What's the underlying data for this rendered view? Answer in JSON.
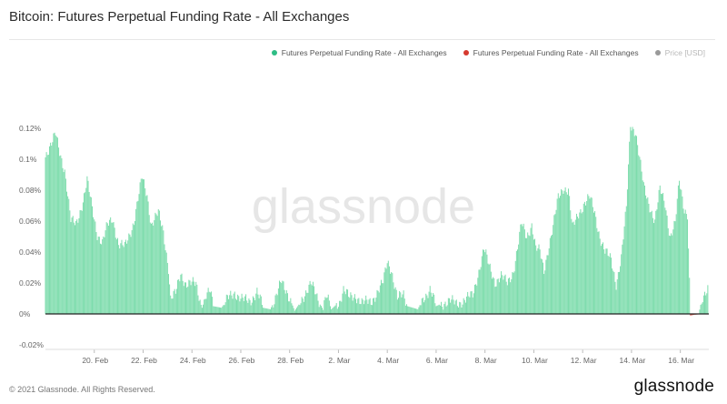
{
  "title": "Bitcoin: Futures Perpetual Funding Rate - All Exchanges",
  "watermark": "glassnode",
  "footer": {
    "copyright": "© 2021 Glassnode. All Rights Reserved.",
    "brand": "glassnode"
  },
  "legend": [
    {
      "label": "Futures Perpetual Funding Rate - All Exchanges",
      "color": "#2ebd85"
    },
    {
      "label": "Futures Perpetual Funding Rate - All Exchanges",
      "color": "#d63a2f"
    },
    {
      "label": "Price [USD]",
      "color": "#9a9a9a"
    }
  ],
  "colors": {
    "positive": "#7ddcac",
    "positive_stroke": "#43c28a",
    "negative": "#d63a2f",
    "zero_line": "#222222"
  },
  "chart_data": {
    "type": "bar",
    "title": "Bitcoin: Futures Perpetual Funding Rate - All Exchanges",
    "x_range": [
      "2021-02-18T00:00",
      "2021-03-17T04:00"
    ],
    "ylim": [
      -0.02,
      0.125
    ],
    "y_unit": "%",
    "grid": false,
    "legend_position": "top-right",
    "y_ticks": [
      {
        "value": 0.12,
        "label": "0.12%"
      },
      {
        "value": 0.1,
        "label": "0.1%"
      },
      {
        "value": 0.08,
        "label": "0.08%"
      },
      {
        "value": 0.06,
        "label": "0.06%"
      },
      {
        "value": 0.04,
        "label": "0.04%"
      },
      {
        "value": 0.02,
        "label": "0.02%"
      },
      {
        "value": 0,
        "label": "0%"
      },
      {
        "value": -0.02,
        "label": "-0.02%"
      }
    ],
    "x_ticks": [
      {
        "date": "2021-02-20",
        "label": "20. Feb"
      },
      {
        "date": "2021-02-22",
        "label": "22. Feb"
      },
      {
        "date": "2021-02-24",
        "label": "24. Feb"
      },
      {
        "date": "2021-02-26",
        "label": "26. Feb"
      },
      {
        "date": "2021-02-28",
        "label": "28. Feb"
      },
      {
        "date": "2021-03-02",
        "label": "2. Mar"
      },
      {
        "date": "2021-03-04",
        "label": "4. Mar"
      },
      {
        "date": "2021-03-06",
        "label": "6. Mar"
      },
      {
        "date": "2021-03-08",
        "label": "8. Mar"
      },
      {
        "date": "2021-03-10",
        "label": "10. Mar"
      },
      {
        "date": "2021-03-12",
        "label": "12. Mar"
      },
      {
        "date": "2021-03-14",
        "label": "14. Mar"
      },
      {
        "date": "2021-03-16",
        "label": "16. Mar"
      }
    ],
    "series": [
      {
        "name": "Futures Perpetual Funding Rate - All Exchanges",
        "interval": "1h",
        "anchors": [
          [
            "2021-02-18T00:00",
            0.103
          ],
          [
            "2021-02-18T07:00",
            0.111
          ],
          [
            "2021-02-18T10:00",
            0.116
          ],
          [
            "2021-02-18T14:00",
            0.105
          ],
          [
            "2021-02-18T19:00",
            0.093
          ],
          [
            "2021-02-19T01:00",
            0.06
          ],
          [
            "2021-02-19T06:00",
            0.058
          ],
          [
            "2021-02-19T13:00",
            0.073
          ],
          [
            "2021-02-19T17:00",
            0.086
          ],
          [
            "2021-02-19T22:00",
            0.068
          ],
          [
            "2021-02-20T03:00",
            0.052
          ],
          [
            "2021-02-20T08:00",
            0.046
          ],
          [
            "2021-02-20T13:00",
            0.057
          ],
          [
            "2021-02-20T18:00",
            0.062
          ],
          [
            "2021-02-21T00:00",
            0.045
          ],
          [
            "2021-02-21T06:00",
            0.043
          ],
          [
            "2021-02-21T11:00",
            0.052
          ],
          [
            "2021-02-21T15:00",
            0.06
          ],
          [
            "2021-02-21T19:00",
            0.074
          ],
          [
            "2021-02-21T23:00",
            0.088
          ],
          [
            "2021-02-22T04:00",
            0.077
          ],
          [
            "2021-02-22T08:00",
            0.058
          ],
          [
            "2021-02-22T15:00",
            0.065
          ],
          [
            "2021-02-22T20:00",
            0.053
          ],
          [
            "2021-02-23T01:00",
            0.03
          ],
          [
            "2021-02-23T03:00",
            0.01
          ],
          [
            "2021-02-23T08:00",
            0.013
          ],
          [
            "2021-02-23T13:00",
            0.026
          ],
          [
            "2021-02-23T18:00",
            0.02
          ],
          [
            "2021-02-24T04:00",
            0.019
          ],
          [
            "2021-02-24T10:00",
            0.004
          ],
          [
            "2021-02-24T14:00",
            0.012
          ],
          [
            "2021-02-24T18:00",
            0.014
          ],
          [
            "2021-02-24T21:00",
            0.005
          ],
          [
            "2021-02-25T05:00",
            0.004
          ],
          [
            "2021-02-25T13:00",
            0.011
          ],
          [
            "2021-02-25T18:00",
            0.014
          ],
          [
            "2021-02-26T02:00",
            0.009
          ],
          [
            "2021-02-26T09:00",
            0.008
          ],
          [
            "2021-02-26T16:00",
            0.015
          ],
          [
            "2021-02-26T22:00",
            0.004
          ],
          [
            "2021-02-27T05:00",
            0.003
          ],
          [
            "2021-02-27T11:00",
            0.011
          ],
          [
            "2021-02-27T16:00",
            0.021
          ],
          [
            "2021-02-27T22:00",
            0.014
          ],
          [
            "2021-02-28T05:00",
            0.002
          ],
          [
            "2021-02-28T11:00",
            0.008
          ],
          [
            "2021-02-28T17:00",
            0.016
          ],
          [
            "2021-02-28T21:00",
            0.02
          ],
          [
            "2021-03-01T03:00",
            0.01
          ],
          [
            "2021-03-01T08:00",
            0.004
          ],
          [
            "2021-03-01T12:00",
            0.013
          ],
          [
            "2021-03-01T17:00",
            0.003
          ],
          [
            "2021-03-02T01:00",
            0.008
          ],
          [
            "2021-03-02T05:00",
            0.016
          ],
          [
            "2021-03-02T11:00",
            0.01
          ],
          [
            "2021-03-02T17:00",
            0.012
          ],
          [
            "2021-03-03T00:00",
            0.007
          ],
          [
            "2021-03-03T08:00",
            0.008
          ],
          [
            "2021-03-03T14:00",
            0.014
          ],
          [
            "2021-03-03T20:00",
            0.02
          ],
          [
            "2021-03-04T00:00",
            0.034
          ],
          [
            "2021-03-04T04:00",
            0.029
          ],
          [
            "2021-03-04T10:00",
            0.01
          ],
          [
            "2021-03-04T16:00",
            0.012
          ],
          [
            "2021-03-04T20:00",
            0.005
          ],
          [
            "2021-03-05T06:00",
            0.003
          ],
          [
            "2021-03-05T12:00",
            0.011
          ],
          [
            "2021-03-05T18:00",
            0.016
          ],
          [
            "2021-03-06T00:00",
            0.005
          ],
          [
            "2021-03-06T06:00",
            0.007
          ],
          [
            "2021-03-06T14:00",
            0.008
          ],
          [
            "2021-03-06T20:00",
            0.007
          ],
          [
            "2021-03-07T04:00",
            0.009
          ],
          [
            "2021-03-07T12:00",
            0.012
          ],
          [
            "2021-03-07T18:00",
            0.028
          ],
          [
            "2021-03-07T23:00",
            0.042
          ],
          [
            "2021-03-08T04:00",
            0.031
          ],
          [
            "2021-03-08T10:00",
            0.021
          ],
          [
            "2021-03-08T16:00",
            0.024
          ],
          [
            "2021-03-08T22:00",
            0.02
          ],
          [
            "2021-03-09T04:00",
            0.028
          ],
          [
            "2021-03-09T08:00",
            0.042
          ],
          [
            "2021-03-09T12:00",
            0.058
          ],
          [
            "2021-03-09T17:00",
            0.05
          ],
          [
            "2021-03-09T22:00",
            0.058
          ],
          [
            "2021-03-10T02:00",
            0.042
          ],
          [
            "2021-03-10T06:00",
            0.04
          ],
          [
            "2021-03-10T10:00",
            0.028
          ],
          [
            "2021-03-10T14:00",
            0.042
          ],
          [
            "2021-03-10T19:00",
            0.056
          ],
          [
            "2021-03-11T00:00",
            0.075
          ],
          [
            "2021-03-11T05:00",
            0.082
          ],
          [
            "2021-03-11T10:00",
            0.08
          ],
          [
            "2021-03-11T14:00",
            0.055
          ],
          [
            "2021-03-11T20:00",
            0.065
          ],
          [
            "2021-03-12T02:00",
            0.072
          ],
          [
            "2021-03-12T07:00",
            0.075
          ],
          [
            "2021-03-12T12:00",
            0.065
          ],
          [
            "2021-03-12T17:00",
            0.05
          ],
          [
            "2021-03-12T22:00",
            0.04
          ],
          [
            "2021-03-13T04:00",
            0.035
          ],
          [
            "2021-03-13T09:00",
            0.02
          ],
          [
            "2021-03-13T14:00",
            0.036
          ],
          [
            "2021-03-13T19:00",
            0.068
          ],
          [
            "2021-03-13T23:00",
            0.123
          ],
          [
            "2021-03-14T04:00",
            0.118
          ],
          [
            "2021-03-14T08:00",
            0.1
          ],
          [
            "2021-03-14T12:00",
            0.082
          ],
          [
            "2021-03-14T18:00",
            0.07
          ],
          [
            "2021-03-14T23:00",
            0.06
          ],
          [
            "2021-03-15T04:00",
            0.08
          ],
          [
            "2021-03-15T09:00",
            0.072
          ],
          [
            "2021-03-15T14:00",
            0.05
          ],
          [
            "2021-03-15T19:00",
            0.058
          ],
          [
            "2021-03-15T23:00",
            0.086
          ],
          [
            "2021-03-16T04:00",
            0.068
          ],
          [
            "2021-03-16T07:00",
            0.065
          ],
          [
            "2021-03-16T10:00",
            -0.001
          ],
          [
            "2021-03-16T14:00",
            -0.0005
          ],
          [
            "2021-03-16T18:00",
            -0.0003
          ],
          [
            "2021-03-16T22:00",
            0.012
          ],
          [
            "2021-03-17T03:00",
            0.016
          ]
        ]
      }
    ]
  }
}
